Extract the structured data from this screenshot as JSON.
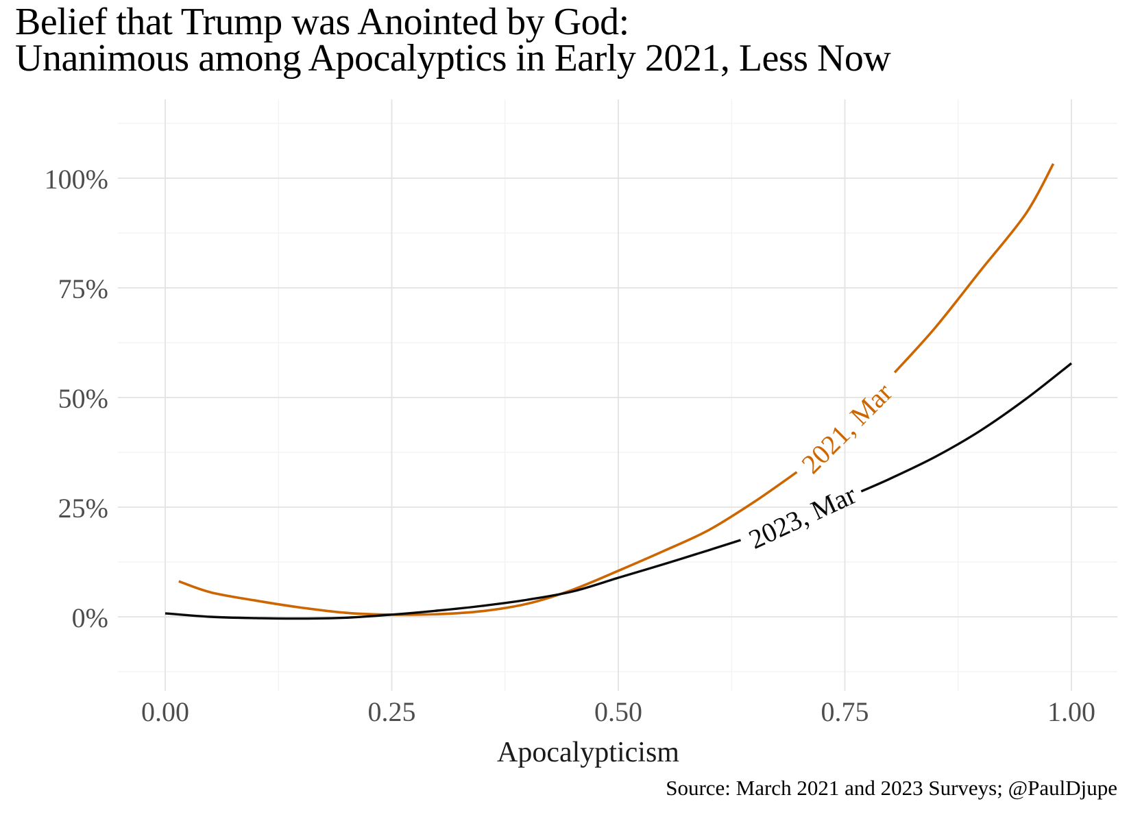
{
  "title": {
    "line1": "Belief that Trump was Anointed by God:",
    "line2": "Unanimous among Apocalyptics in Early 2021, Less Now"
  },
  "caption": "Source: March 2021 and 2023 Surveys; @PaulDjupe",
  "chart_data": {
    "type": "line",
    "title": "Belief that Trump was Anointed by God: Unanimous among Apocalyptics in Early 2021, Less Now",
    "xlabel": "Apocalypticism",
    "ylabel": "",
    "legend_position": "inline-curve-labels",
    "grid": {
      "major_color": "#E5E5E5",
      "minor_color": "#F1F1F1",
      "major_width": 2,
      "minor_width": 1.2
    },
    "axis_text_color": "#4D4D4D",
    "x_axis": {
      "range": [
        -0.052,
        1.051
      ],
      "ticks": [
        0,
        0.25,
        0.5,
        0.75,
        1
      ],
      "tick_labels": [
        "0.00",
        "0.25",
        "0.50",
        "0.75",
        "1.00"
      ],
      "minor_ticks": [
        0.125,
        0.375,
        0.625,
        0.875
      ]
    },
    "y_axis": {
      "range": [
        -0.169,
        1.18
      ],
      "ticks": [
        0,
        0.25,
        0.5,
        0.75,
        1
      ],
      "tick_labels": [
        "0%",
        "25%",
        "50%",
        "75%",
        "100%"
      ],
      "minor_ticks": [
        -0.125,
        0.125,
        0.375,
        0.625,
        0.875,
        1.125
      ]
    },
    "series": [
      {
        "name": "2021, Mar",
        "color": "#CD6600",
        "stroke_width": 3.6,
        "label": {
          "text": "2021, Mar",
          "x": 0.752,
          "y": 0.43,
          "angle": -45
        },
        "segments": [
          {
            "x": [
              0.015,
              0.05,
              0.1,
              0.15,
              0.2,
              0.25,
              0.3,
              0.35,
              0.4,
              0.45,
              0.5,
              0.55,
              0.6,
              0.65,
              0.697
            ],
            "y": [
              0.081,
              0.056,
              0.037,
              0.021,
              0.009,
              0.005,
              0.006,
              0.013,
              0.03,
              0.062,
              0.105,
              0.15,
              0.198,
              0.262,
              0.33
            ]
          },
          {
            "x": [
              0.805,
              0.85,
              0.9,
              0.95,
              0.98
            ],
            "y": [
              0.557,
              0.66,
              0.79,
              0.92,
              1.033
            ]
          }
        ]
      },
      {
        "name": "2023, Mar",
        "color": "#0A0A0A",
        "stroke_width": 3.4,
        "label": {
          "text": "2023, Mar",
          "x": 0.703,
          "y": 0.228,
          "angle": -25
        },
        "segments": [
          {
            "x": [
              0.0,
              0.05,
              0.1,
              0.15,
              0.2,
              0.25,
              0.3,
              0.35,
              0.4,
              0.45,
              0.5,
              0.55,
              0.6,
              0.635
            ],
            "y": [
              0.008,
              0.0,
              -0.003,
              -0.004,
              -0.002,
              0.005,
              0.014,
              0.025,
              0.039,
              0.058,
              0.089,
              0.12,
              0.152,
              0.175
            ]
          },
          {
            "x": [
              0.768,
              0.8,
              0.85,
              0.9,
              0.95,
              1.0
            ],
            "y": [
              0.286,
              0.315,
              0.365,
              0.425,
              0.497,
              0.578
            ]
          }
        ]
      }
    ]
  }
}
